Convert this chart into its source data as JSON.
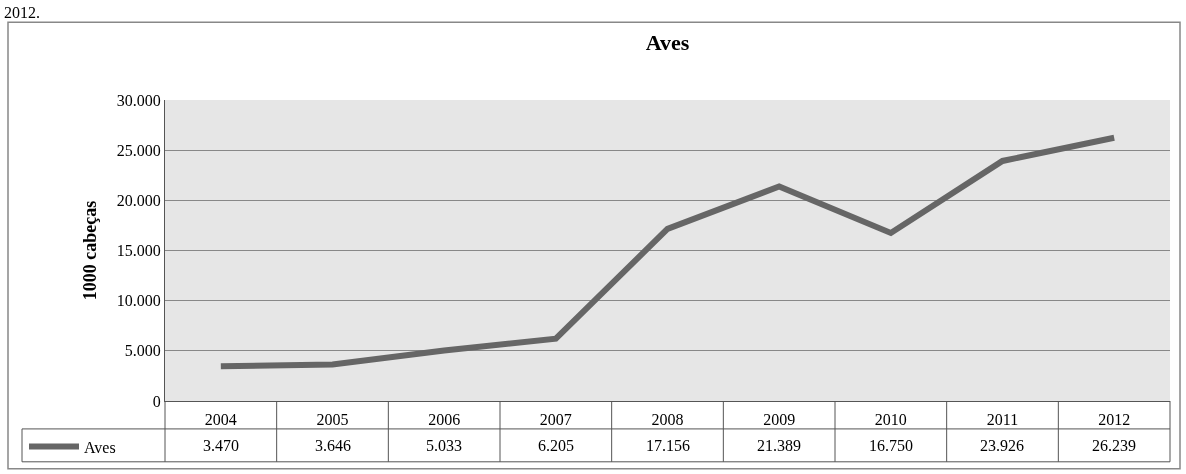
{
  "chart_data": {
    "type": "line",
    "title": "Aves",
    "ylabel": "1000 cabeças",
    "annotations": [
      "2012."
    ],
    "categories": [
      "2004",
      "2005",
      "2006",
      "2007",
      "2008",
      "2009",
      "2010",
      "2011",
      "2012"
    ],
    "series": [
      {
        "name": "Aves",
        "color": "#666666",
        "values": [
          3470,
          3646,
          5033,
          6205,
          17156,
          21389,
          16750,
          23926,
          26239
        ],
        "value_labels": [
          "3.470",
          "3.646",
          "5.033",
          "6.205",
          "17.156",
          "21.389",
          "16.750",
          "23.926",
          "26.239"
        ]
      }
    ],
    "ylim": [
      0,
      30000
    ],
    "yticks": [
      {
        "value": 0,
        "label": "0"
      },
      {
        "value": 5000,
        "label": "5.000"
      },
      {
        "value": 10000,
        "label": "10.000"
      },
      {
        "value": 15000,
        "label": "15.000"
      },
      {
        "value": 20000,
        "label": "20.000"
      },
      {
        "value": 25000,
        "label": "25.000"
      },
      {
        "value": 30000,
        "label": "30.000"
      }
    ],
    "grid": "y",
    "legend": "bottom left",
    "marker": "none",
    "line_style": "solid"
  }
}
